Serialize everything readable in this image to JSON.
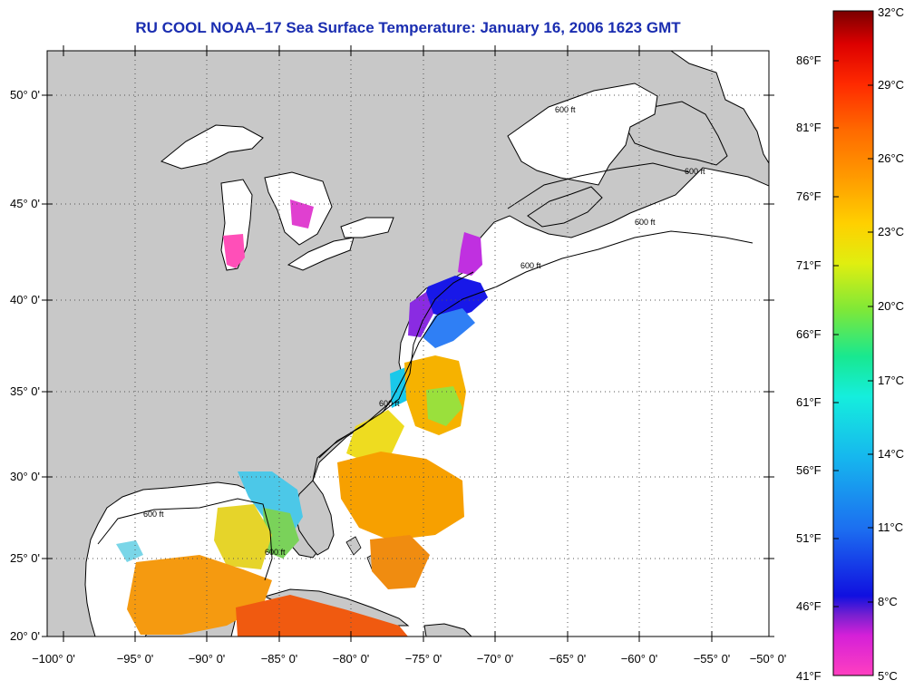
{
  "title": "RU COOL  NOAA–17  Sea Surface Temperature:  January 16, 2006 1623 GMT",
  "map": {
    "lat_labels": [
      "50° 0'",
      "45° 0'",
      "40° 0'",
      "35° 0'",
      "30° 0'",
      "25° 0'",
      "20° 0'"
    ],
    "lon_labels": [
      "−100° 0'",
      "−95° 0'",
      "−90° 0'",
      "−85° 0'",
      "−80° 0'",
      "−75° 0'",
      "−70° 0'",
      "−65° 0'",
      "−60° 0'",
      "−55° 0'",
      "−50° 0'"
    ],
    "contour_label": "600 ft",
    "colors": {
      "land": "#c8c8c8",
      "ocean": "#ffffff",
      "grid": "#555555"
    }
  },
  "colorbar": {
    "fahrenheit_labels": [
      "86°F",
      "81°F",
      "76°F",
      "71°F",
      "66°F",
      "61°F",
      "56°F",
      "51°F",
      "46°F",
      "41°F"
    ],
    "celsius_labels": [
      "32°C",
      "29°C",
      "26°C",
      "23°C",
      "20°C",
      "17°C",
      "14°C",
      "11°C",
      "8°C",
      "5°C"
    ],
    "gradient": [
      "#ff3fc0",
      "#d520d8",
      "#7a20d0",
      "#1010e0",
      "#1c6ef0",
      "#16b8ee",
      "#15eedd",
      "#18e890",
      "#7ee838",
      "#e0ee10",
      "#ffd000",
      "#ff9a00",
      "#ff6a00",
      "#ff2a00",
      "#dd0000",
      "#7a0000"
    ]
  }
}
